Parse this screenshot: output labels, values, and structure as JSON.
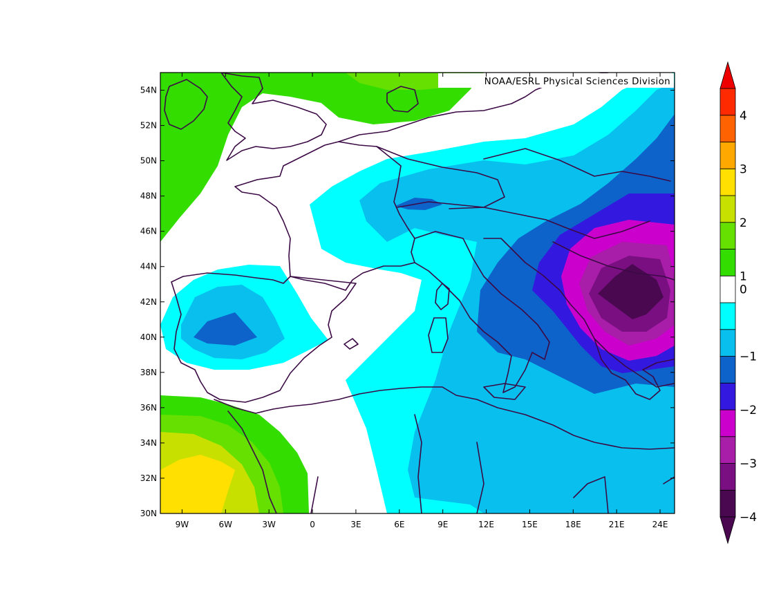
{
  "credit": "NOAA/ESRL Physical Sciences Division",
  "map": {
    "lon_range": [
      -10.5,
      25
    ],
    "lat_range": [
      30,
      55
    ],
    "x_ticks": [
      {
        "lon": -9,
        "label": "9W"
      },
      {
        "lon": -6,
        "label": "6W"
      },
      {
        "lon": -3,
        "label": "3W"
      },
      {
        "lon": 0,
        "label": "0"
      },
      {
        "lon": 3,
        "label": "3E"
      },
      {
        "lon": 6,
        "label": "6E"
      },
      {
        "lon": 9,
        "label": "9E"
      },
      {
        "lon": 12,
        "label": "12E"
      },
      {
        "lon": 15,
        "label": "15E"
      },
      {
        "lon": 18,
        "label": "18E"
      },
      {
        "lon": 21,
        "label": "21E"
      },
      {
        "lon": 24,
        "label": "24E"
      }
    ],
    "y_ticks": [
      {
        "lat": 30,
        "label": "30N"
      },
      {
        "lat": 32,
        "label": "32N"
      },
      {
        "lat": 34,
        "label": "34N"
      },
      {
        "lat": 36,
        "label": "36N"
      },
      {
        "lat": 38,
        "label": "38N"
      },
      {
        "lat": 40,
        "label": "40N"
      },
      {
        "lat": 42,
        "label": "42N"
      },
      {
        "lat": 44,
        "label": "44N"
      },
      {
        "lat": 46,
        "label": "46N"
      },
      {
        "lat": 48,
        "label": "48N"
      },
      {
        "lat": 50,
        "label": "50N"
      },
      {
        "lat": 52,
        "label": "52N"
      },
      {
        "lat": 54,
        "label": "54N"
      }
    ]
  },
  "colorbar": {
    "levels": [
      -4,
      -3.5,
      -3,
      -2.5,
      -2,
      -1.5,
      -1,
      -0.5,
      0.5,
      1,
      1.5,
      2,
      2.5,
      3,
      3.5,
      4
    ],
    "colors": [
      "#4a0850",
      "#7a0f82",
      "#a81ea8",
      "#cc00cc",
      "#3318e0",
      "#0d63c9",
      "#08bfee",
      "#00ffff",
      "#ffffff",
      "#33dd00",
      "#66e000",
      "#c8e000",
      "#ffe000",
      "#ffa800",
      "#ff6200",
      "#ff2a00"
    ],
    "min_color": "#4a0850",
    "max_color": "#ee0000",
    "labels": [
      {
        "value": 4,
        "text": "4"
      },
      {
        "value": 3,
        "text": "3"
      },
      {
        "value": 2,
        "text": "2"
      },
      {
        "value": 1,
        "text": "1"
      },
      {
        "value": 0,
        "text": "0"
      },
      {
        "value": -1,
        "text": "−1"
      },
      {
        "value": -2,
        "text": "−2"
      },
      {
        "value": -3,
        "text": "−3"
      },
      {
        "value": -4,
        "text": "−4"
      }
    ]
  }
}
